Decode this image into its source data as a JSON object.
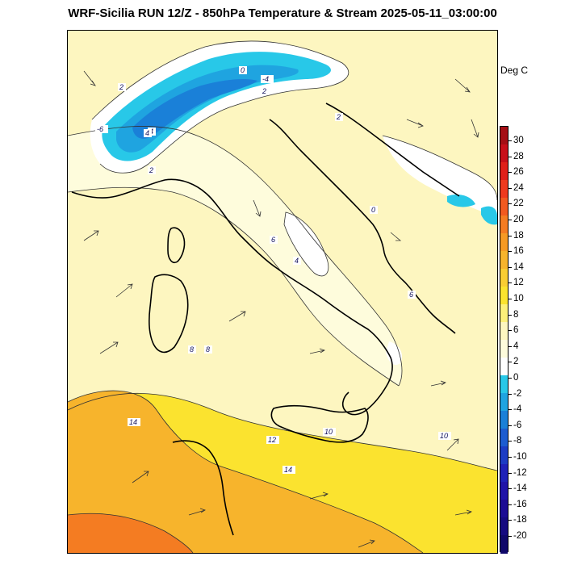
{
  "title": "WRF-Sicilia RUN 12/Z - 850hPa Temperature & Stream 2025-05-11_03:00:00",
  "units_label": "Deg C",
  "colorbar": {
    "labels": [
      "30",
      "28",
      "26",
      "24",
      "22",
      "20",
      "18",
      "16",
      "14",
      "12",
      "10",
      "8",
      "6",
      "4",
      "2",
      "0",
      "-2",
      "-4",
      "-6",
      "-8",
      "-10",
      "-12",
      "-14",
      "-16",
      "-18",
      "-20"
    ],
    "colors": [
      "#a50f15",
      "#c8101a",
      "#e0201a",
      "#ef3a1e",
      "#f25a20",
      "#f47c22",
      "#f59a24",
      "#f7b42c",
      "#f9cd33",
      "#fbe32f",
      "#fdf07a",
      "#fdf6c0",
      "#fefcdc",
      "#ffffff",
      "#28c8e8",
      "#1fa4e0",
      "#1a80d8",
      "#1c5cd0",
      "#1c3cc4",
      "#1f22b8",
      "#2014a8",
      "#1c0c94",
      "#160a80",
      "#10086a"
    ]
  },
  "contour_labels": [
    "2",
    "2",
    "4",
    "0",
    "-4",
    "4",
    "2",
    "2",
    "0",
    "-6",
    "6",
    "4",
    "6",
    "8",
    "8",
    "14",
    "12",
    "10",
    "10",
    "14"
  ],
  "icons": [
    "coastline",
    "temperature-field",
    "streamline-arrows"
  ]
}
